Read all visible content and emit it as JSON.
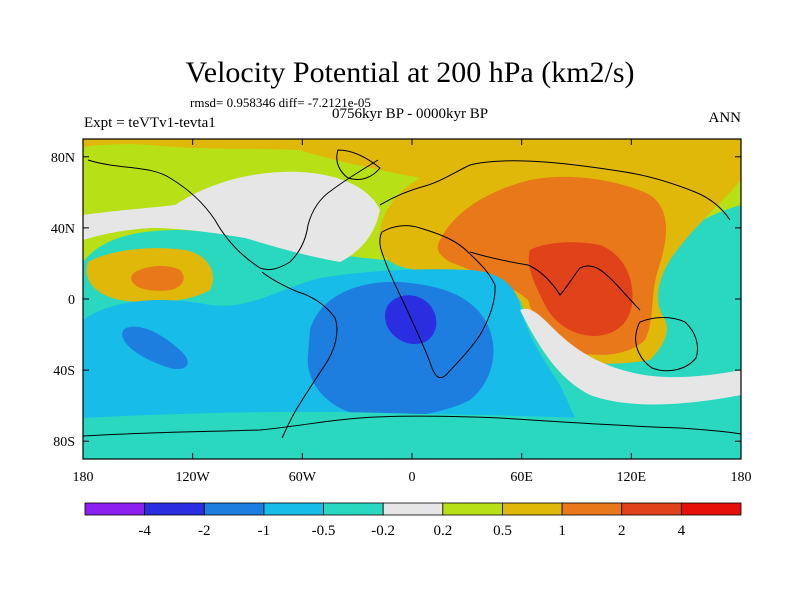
{
  "chart_data": {
    "type": "filled-contour-map",
    "title": "Velocity Potential at 200 hPa (km2/s)",
    "stats_line": "rmsd= 0.958346  diff= -7.2121e-05",
    "left_label": "Expt = teVTv1-tevta1",
    "center_label": "0756kyr BP - 0000kyr BP",
    "right_label": "ANN",
    "lon_range": [
      -180,
      180
    ],
    "lat_range": [
      -90,
      90
    ],
    "x_ticks": [
      {
        "lon": -180,
        "label": "180"
      },
      {
        "lon": -120,
        "label": "120W"
      },
      {
        "lon": -60,
        "label": "60W"
      },
      {
        "lon": 0,
        "label": "0"
      },
      {
        "lon": 60,
        "label": "60E"
      },
      {
        "lon": 120,
        "label": "120E"
      },
      {
        "lon": 180,
        "label": "180"
      }
    ],
    "y_ticks": [
      {
        "lat": 80,
        "label": "80N"
      },
      {
        "lat": 40,
        "label": "40N"
      },
      {
        "lat": 0,
        "label": "0"
      },
      {
        "lat": -40,
        "label": "40S"
      },
      {
        "lat": -80,
        "label": "80S"
      }
    ],
    "contour_levels": [
      "-4",
      "-2",
      "-1",
      "-0.5",
      "-0.2",
      "0.2",
      "0.5",
      "1",
      "2",
      "4"
    ],
    "colorbar_colors": [
      "#8a1ff0",
      "#2a2ee0",
      "#1e7ee0",
      "#17bce8",
      "#2ad8c0",
      "#e6e6e6",
      "#b8e017",
      "#e0b80a",
      "#e8781a",
      "#e0421a",
      "#e6100a"
    ],
    "regions": [
      {
        "name": "northern-hemisphere-positive",
        "level": 0.5
      },
      {
        "name": "eurasia-africa-positive",
        "level": 1
      },
      {
        "name": "asia-monsoon-maximum",
        "level": 2
      },
      {
        "name": "india-center",
        "level": 4
      },
      {
        "name": "eastern-pacific-positive",
        "level": 0.5
      },
      {
        "name": "eastern-pacific-center",
        "level": 1
      },
      {
        "name": "southern-atlantic-negative",
        "level": -1
      },
      {
        "name": "africa-minimum",
        "level": -2
      },
      {
        "name": "southeast-pacific-negative",
        "level": -1
      }
    ]
  }
}
